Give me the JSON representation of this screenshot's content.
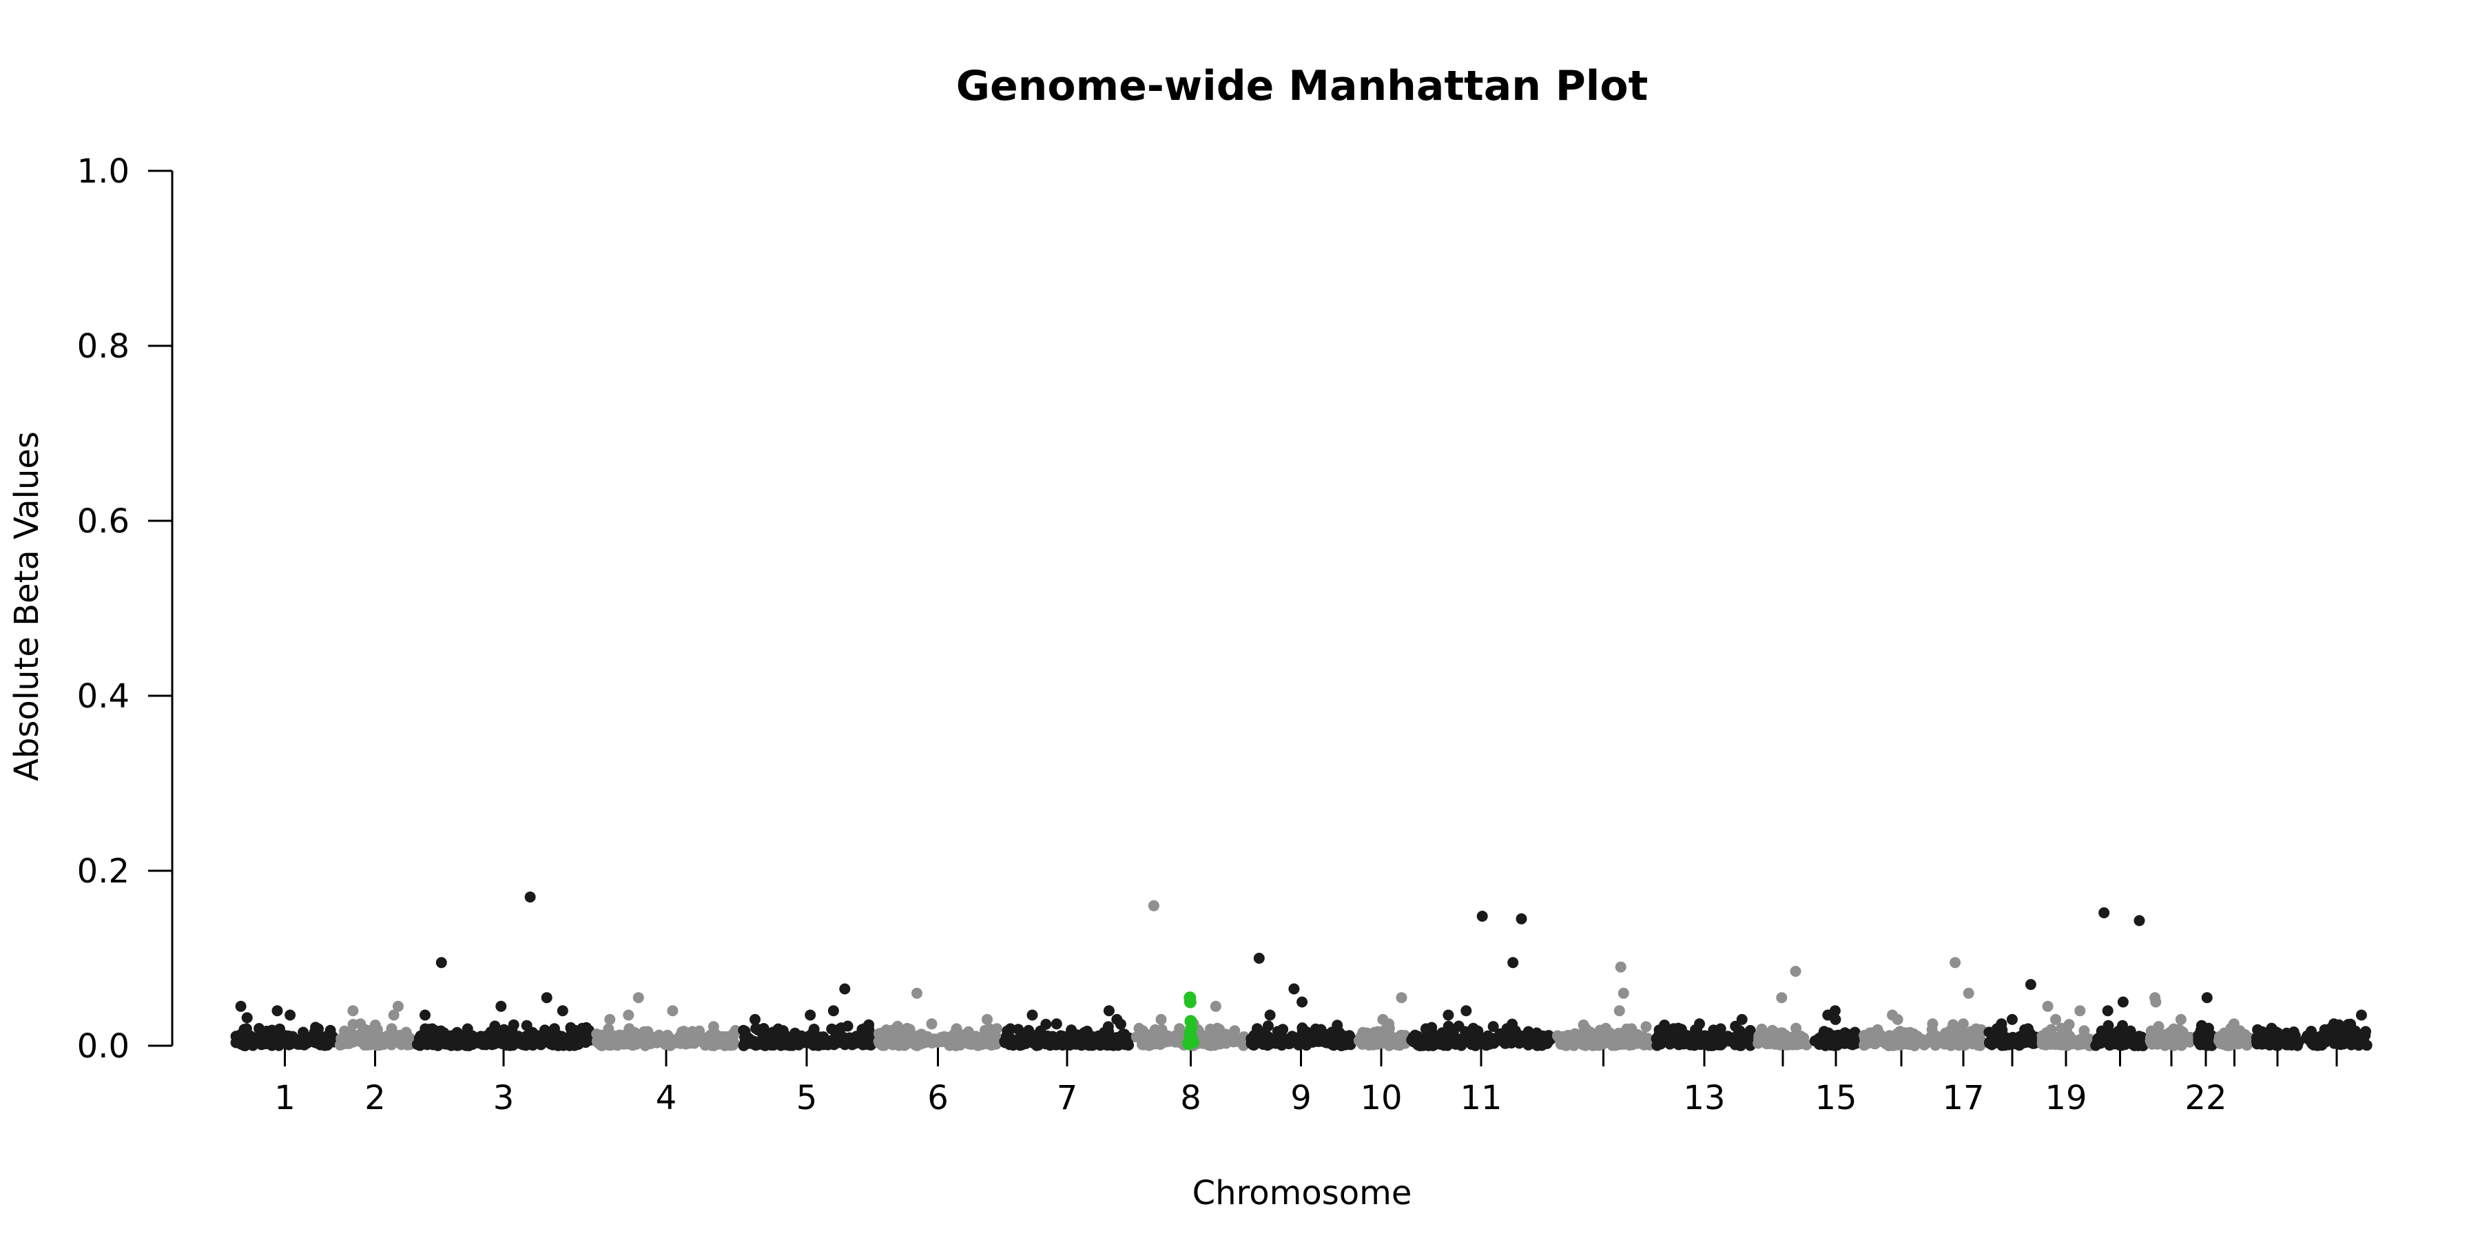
{
  "chart_data": {
    "type": "scatter",
    "title": "Genome-wide Manhattan Plot",
    "xlabel": "Chromosome",
    "ylabel": "Absolute Beta Values",
    "ylim": [
      0,
      1.0
    ],
    "yticks": [
      "0.0",
      "0.2",
      "0.4",
      "0.6",
      "0.8",
      "1.0"
    ],
    "grid": false,
    "legend": "none",
    "colors": {
      "dark": "#1a1a1a",
      "light": "#8f8f8f",
      "highlight": "#22c322"
    },
    "chromosomes": [
      {
        "chr": "1",
        "label": "1",
        "color": "dark",
        "peaks": [
          0.045,
          0.04,
          0.035,
          0.032
        ]
      },
      {
        "chr": "2",
        "label": "2",
        "color": "light",
        "peaks": [
          0.045,
          0.04,
          0.035,
          0.025
        ]
      },
      {
        "chr": "3",
        "label": "3",
        "color": "dark",
        "peaks": [
          0.17,
          0.095,
          0.055,
          0.045,
          0.04,
          0.035
        ]
      },
      {
        "chr": "4",
        "label": "4",
        "color": "light",
        "peaks": [
          0.055,
          0.04,
          0.035,
          0.03
        ]
      },
      {
        "chr": "5",
        "label": "5",
        "color": "dark",
        "peaks": [
          0.065,
          0.04,
          0.035,
          0.03
        ]
      },
      {
        "chr": "6",
        "label": "6",
        "color": "light",
        "peaks": [
          0.06,
          0.03,
          0.025
        ]
      },
      {
        "chr": "7",
        "label": "7",
        "color": "dark",
        "peaks": [
          0.04,
          0.035,
          0.03,
          0.025
        ]
      },
      {
        "chr": "8",
        "label": "8",
        "color": "light",
        "peaks": [
          0.16,
          0.045,
          0.03,
          0.025
        ]
      },
      {
        "chr": "9",
        "label": "9",
        "color": "dark",
        "peaks": [
          0.1,
          0.065,
          0.05,
          0.035
        ]
      },
      {
        "chr": "10",
        "label": "10",
        "color": "light",
        "peaks": [
          0.055,
          0.03,
          0.025
        ]
      },
      {
        "chr": "11",
        "label": "11",
        "color": "dark",
        "peaks": [
          0.148,
          0.145,
          0.095,
          0.04,
          0.035
        ]
      },
      {
        "chr": "12",
        "label": "",
        "color": "light",
        "peaks": [
          0.09,
          0.06,
          0.04
        ]
      },
      {
        "chr": "13",
        "label": "13",
        "color": "dark",
        "peaks": [
          0.03,
          0.025,
          0.02
        ]
      },
      {
        "chr": "14",
        "label": "",
        "color": "light",
        "peaks": [
          0.085,
          0.055,
          0.02
        ]
      },
      {
        "chr": "15",
        "label": "15",
        "color": "dark",
        "peaks": [
          0.04,
          0.035,
          0.03
        ]
      },
      {
        "chr": "16",
        "label": "",
        "color": "light",
        "peaks": [
          0.035,
          0.03,
          0.025
        ]
      },
      {
        "chr": "17",
        "label": "17",
        "color": "light",
        "peaks": [
          0.095,
          0.06,
          0.025
        ]
      },
      {
        "chr": "18",
        "label": "",
        "color": "dark",
        "peaks": [
          0.07,
          0.03,
          0.025
        ]
      },
      {
        "chr": "19",
        "label": "19",
        "color": "light",
        "peaks": [
          0.045,
          0.04,
          0.03
        ]
      },
      {
        "chr": "20",
        "label": "",
        "color": "dark",
        "peaks": [
          0.152,
          0.143,
          0.05,
          0.04
        ]
      },
      {
        "chr": "21",
        "label": "",
        "color": "light",
        "peaks": [
          0.055,
          0.05,
          0.03
        ]
      },
      {
        "chr": "22",
        "label": "22",
        "color": "dark",
        "peaks": [
          0.055,
          0.02
        ]
      },
      {
        "chr": "23",
        "label": "",
        "color": "light",
        "peaks": [
          0.025,
          0.02
        ]
      },
      {
        "chr": "24",
        "label": "",
        "color": "dark",
        "peaks": [
          0.02,
          0.015
        ]
      },
      {
        "chr": "25",
        "label": "",
        "color": "dark",
        "peaks": [
          0.035,
          0.025,
          0.02
        ]
      }
    ],
    "highlight_points": [
      {
        "chr": "8",
        "values": [
          0.055,
          0.05,
          0.028,
          0.02,
          0.015,
          0.012,
          0.01,
          0.008,
          0.006,
          0.005,
          0.004,
          0.003,
          0.002
        ]
      }
    ]
  }
}
